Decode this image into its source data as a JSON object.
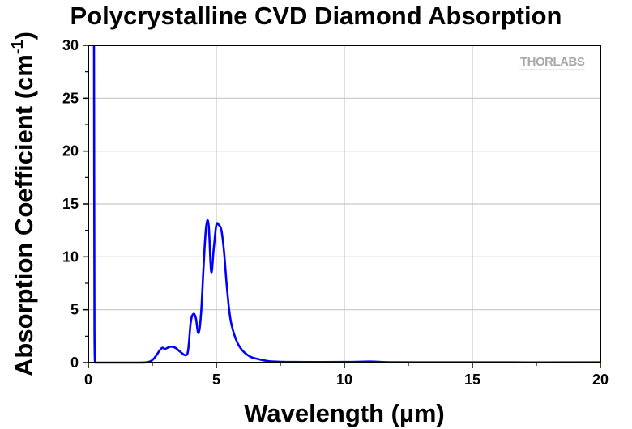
{
  "chart_data": {
    "type": "line",
    "title": "Polycrystalline CVD Diamond Absorption",
    "xlabel": "Wavelength (µm)",
    "ylabel": "Absorption Coefficient (cm",
    "ylabel_superscript": "-1",
    "ylabel_suffix": ")",
    "xlim": [
      0,
      20
    ],
    "ylim": [
      0,
      30
    ],
    "xticks": [
      "0",
      "5",
      "10",
      "15",
      "20"
    ],
    "yticks": [
      "0",
      "5",
      "10",
      "15",
      "20",
      "25",
      "30"
    ],
    "grid": true,
    "logo": "THORLABS",
    "line_color": "#0000ff",
    "series": [
      {
        "x": [
          0.22,
          0.24,
          0.26,
          0.28,
          0.3,
          0.4,
          1.0,
          2.0,
          2.4,
          2.6,
          2.8,
          2.9,
          3.0,
          3.2,
          3.4,
          3.6,
          3.8,
          3.9,
          4.0,
          4.1,
          4.2,
          4.3,
          4.4,
          4.5,
          4.6,
          4.7,
          4.8,
          4.9,
          5.0,
          5.1,
          5.2,
          5.3,
          5.4,
          5.5,
          5.6,
          5.8,
          6.0,
          6.3,
          6.6,
          7.0,
          7.5,
          8.0,
          10.0,
          11.0,
          11.5,
          12.0,
          15.0,
          20.0
        ],
        "y": [
          30,
          3.0,
          0.0,
          0.0,
          0.0,
          0.0,
          0.0,
          0.0,
          0.1,
          0.5,
          1.2,
          1.4,
          1.3,
          1.5,
          1.4,
          1.0,
          0.7,
          1.2,
          3.8,
          4.6,
          4.2,
          2.8,
          4.5,
          9.0,
          12.8,
          13.0,
          8.6,
          10.8,
          13.0,
          13.0,
          12.5,
          10.5,
          7.5,
          5.0,
          3.5,
          2.0,
          1.2,
          0.6,
          0.35,
          0.15,
          0.08,
          0.06,
          0.06,
          0.1,
          0.05,
          0.03,
          0.02,
          0.02
        ]
      }
    ]
  }
}
